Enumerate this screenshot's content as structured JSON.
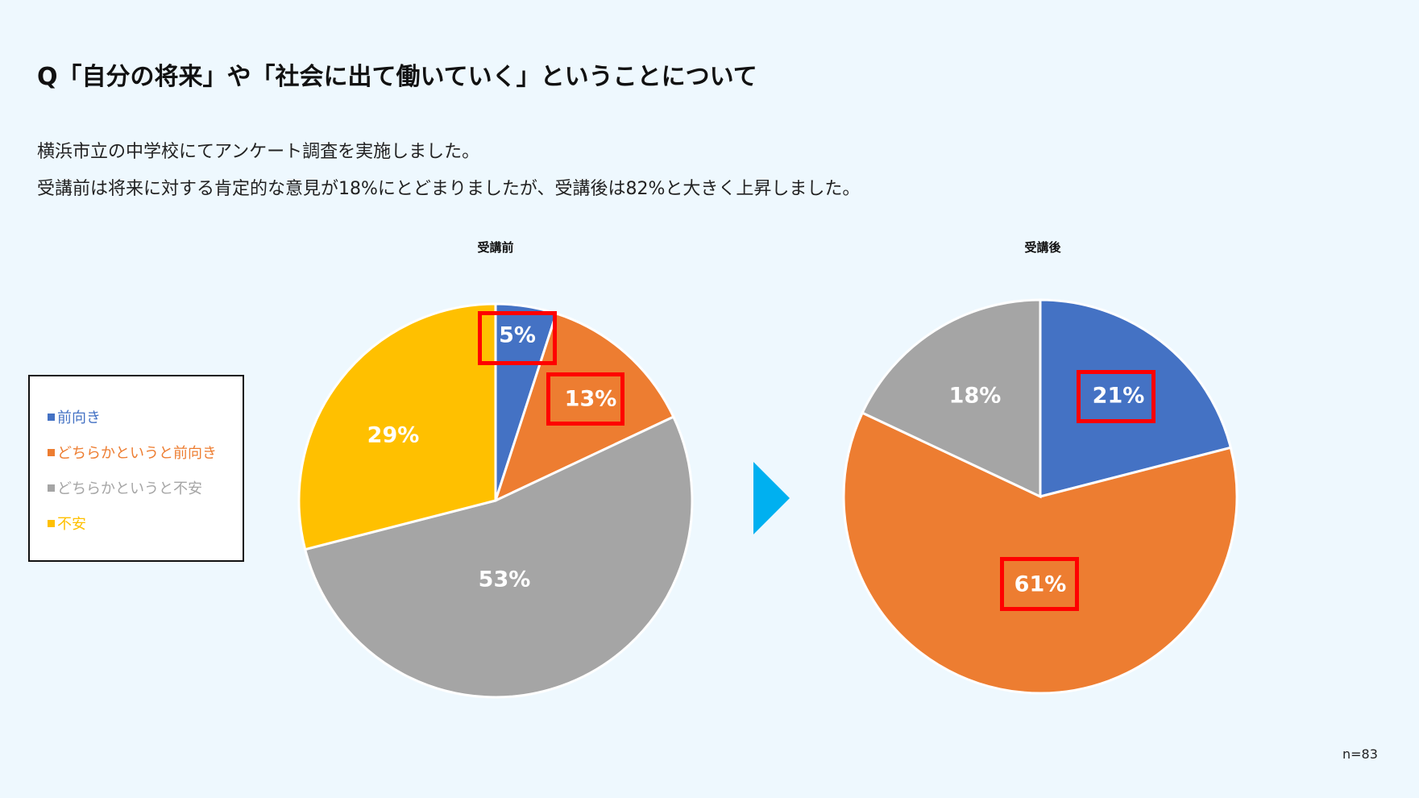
{
  "title": "Q「自分の将来」や「社会に出て働いていく」ということについて",
  "description": [
    "横浜市立の中学校にてアンケート調査を実施しました。",
    "受講前は将来に対する肯定的な意見が18%にとどまりましたが、受講後は82%と大きく上昇しました。"
  ],
  "note": "n=83",
  "legend": [
    {
      "label": "前向き",
      "color": "#4472c4"
    },
    {
      "label": "どちらかというと前向き",
      "color": "#ed7d31"
    },
    {
      "label": "どちらかというと不安",
      "color": "#a5a5a5"
    },
    {
      "label": "不安",
      "color": "#ffc000"
    }
  ],
  "arrow_color": "#00b0f0",
  "highlight_color": "#ff0000",
  "chart_data": [
    {
      "type": "pie",
      "title": "受講前",
      "categories": [
        "前向き",
        "どちらかというと前向き",
        "どちらかというと不安",
        "不安"
      ],
      "values": [
        5,
        13,
        53,
        29
      ],
      "labels": [
        "5%",
        "13%",
        "53%",
        "29%"
      ],
      "colors": [
        "#4472c4",
        "#ed7d31",
        "#a5a5a5",
        "#ffc000"
      ],
      "highlighted": [
        "5%",
        "13%"
      ]
    },
    {
      "type": "pie",
      "title": "受講後",
      "categories": [
        "前向き",
        "どちらかというと前向き",
        "どちらかというと不安"
      ],
      "values": [
        21,
        61,
        18
      ],
      "labels": [
        "21%",
        "61%",
        "18%"
      ],
      "colors": [
        "#4472c4",
        "#ed7d31",
        "#a5a5a5"
      ],
      "highlighted": [
        "21%",
        "61%"
      ]
    }
  ]
}
